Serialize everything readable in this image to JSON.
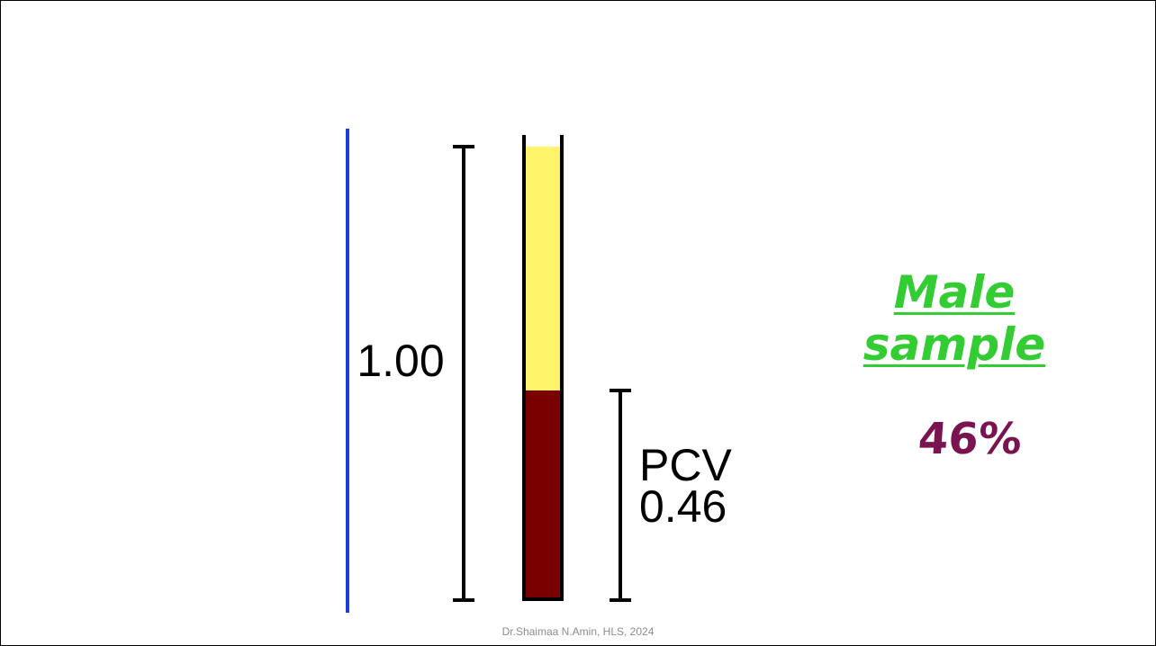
{
  "diagram": {
    "total_label": "1.00",
    "pcv_label": "PCV",
    "pcv_value_label": "0.46",
    "packed_cell_fraction": 0.46,
    "colors": {
      "plasma": "#fff36a",
      "packed_cells": "#7a0000",
      "scale": "#000000",
      "left_rule": "#1a3fd6"
    }
  },
  "heading": {
    "line1": "Male",
    "line2": "sample",
    "color": "#33cc33"
  },
  "annotation": {
    "handwritten": "46%",
    "color": "#7a1450"
  },
  "footer": {
    "credit": "Dr.Shaimaa N.Amin, HLS, 2024"
  }
}
